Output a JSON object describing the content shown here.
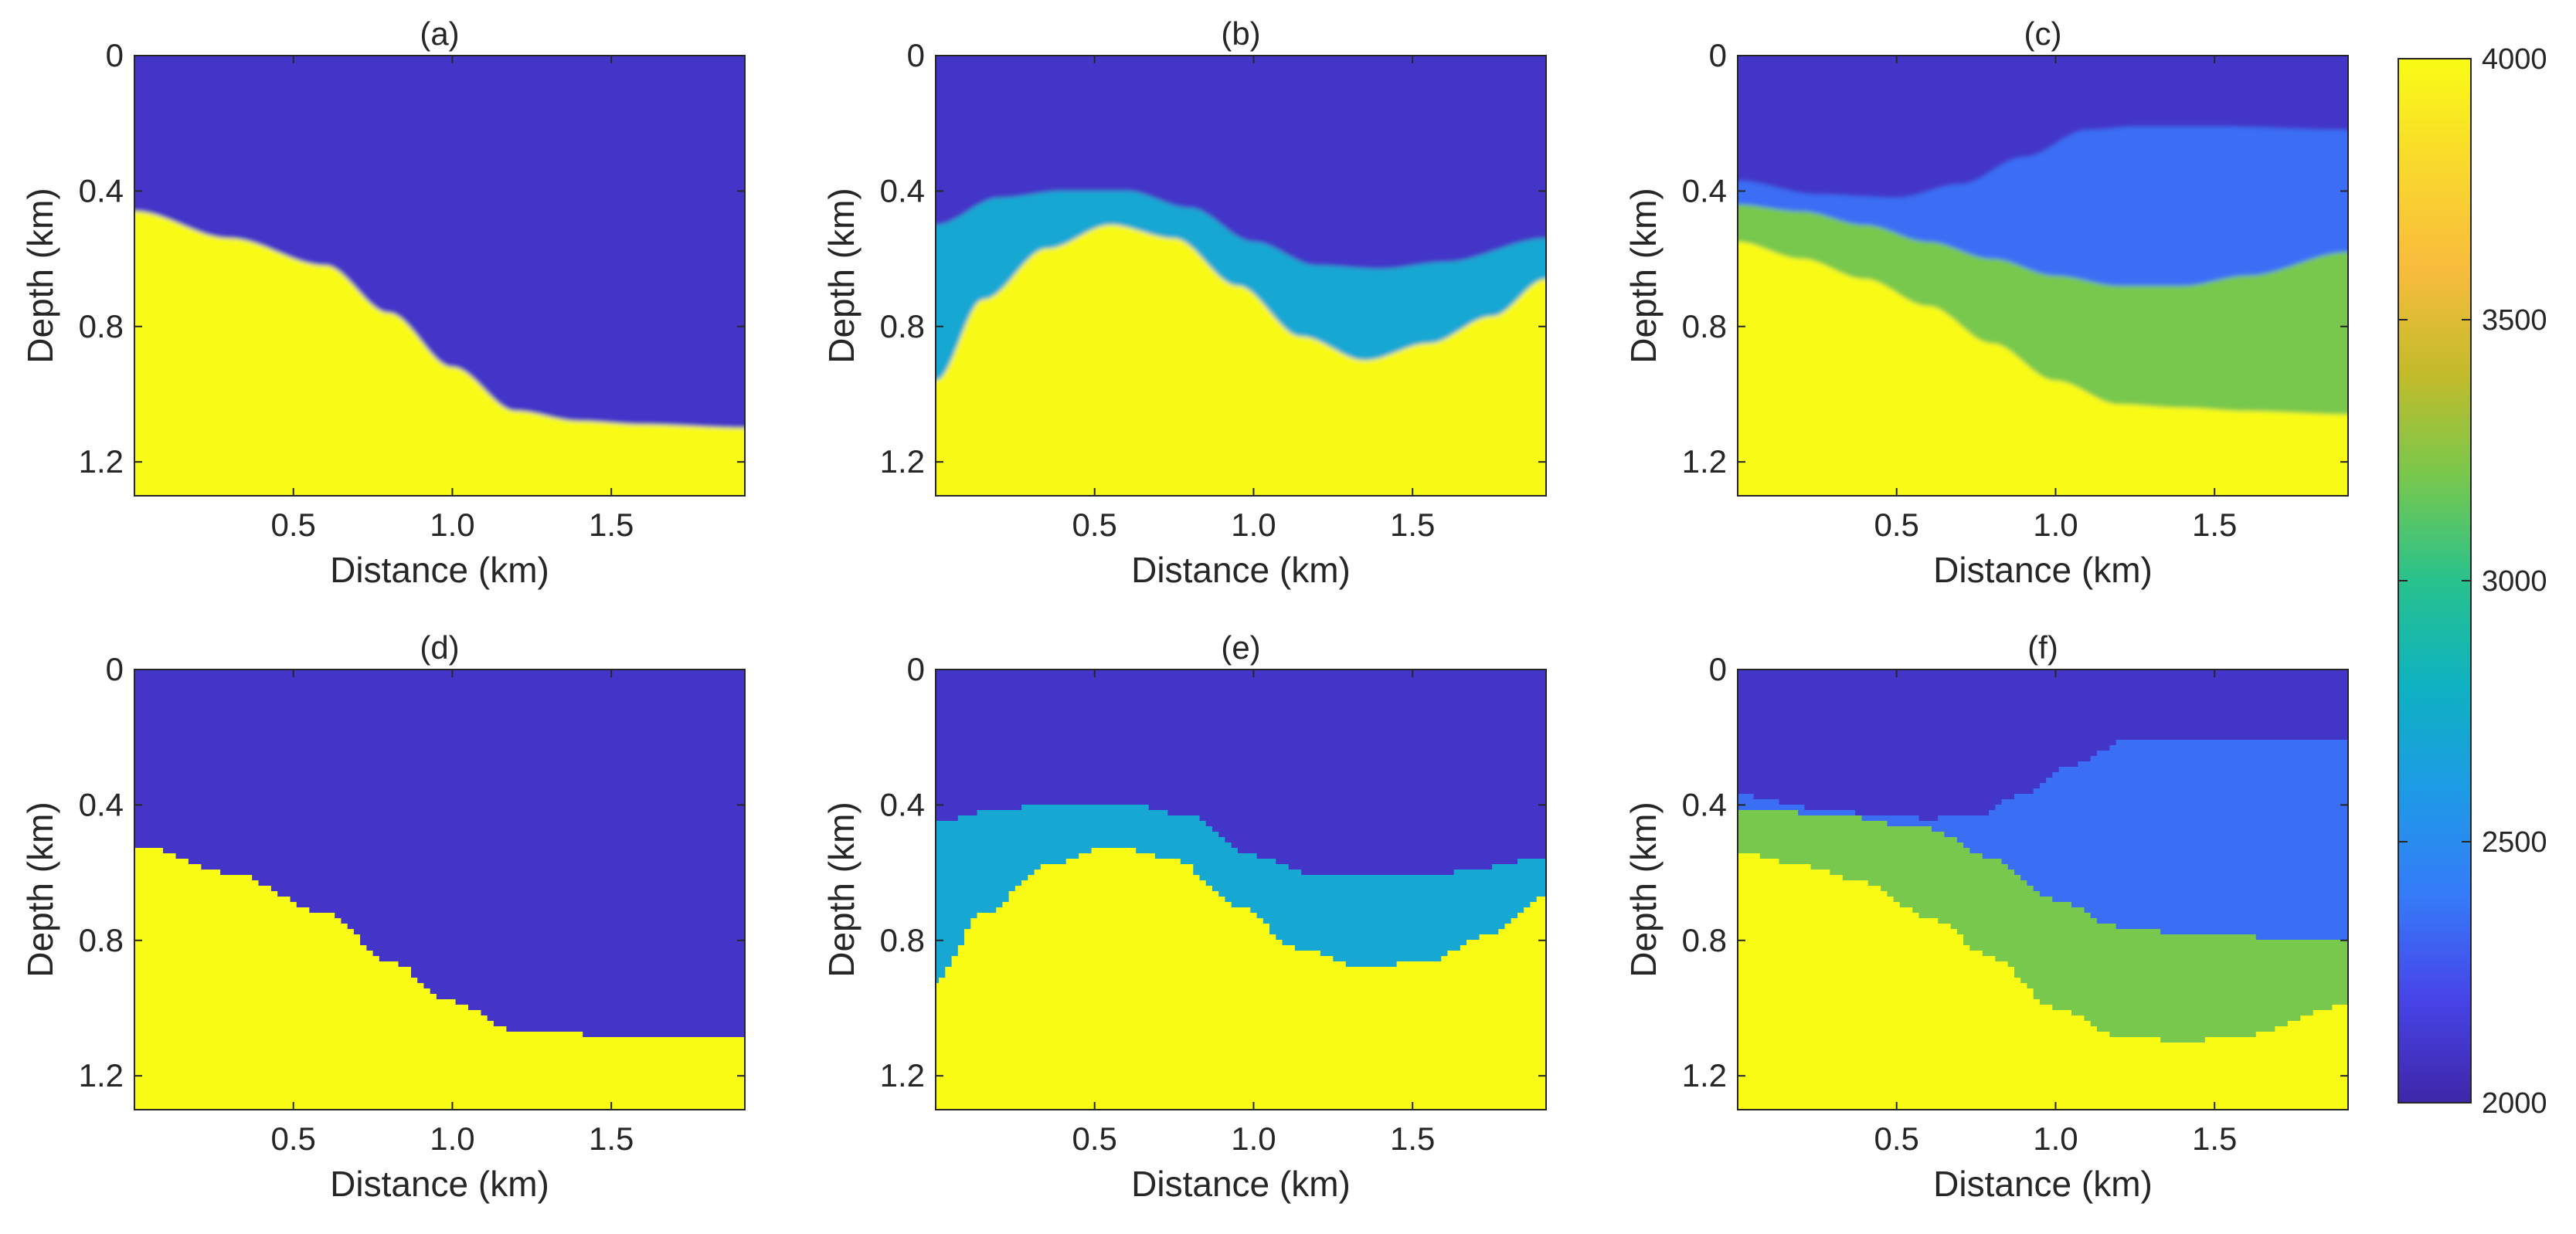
{
  "chart_data": [
    {
      "type": "heatmap",
      "title": "(a)",
      "xlabel": "Distance (km)",
      "ylabel": "Depth (km)",
      "xlim": [
        0,
        1.92
      ],
      "ylim": [
        0,
        1.3
      ],
      "xticks": [
        "0.5",
        "1.0",
        "1.5"
      ],
      "xtick_values": [
        0.5,
        1.0,
        1.5
      ],
      "yticks": [
        "0",
        "0.4",
        "0.8",
        "1.2"
      ],
      "ytick_values": [
        0,
        0.4,
        0.8,
        1.2
      ],
      "smooth": true,
      "top_velocity": 2100,
      "layers": [
        {
          "velocity": 4000,
          "top_depth": {
            "x": [
              0,
              0.3,
              0.6,
              0.8,
              1.0,
              1.2,
              1.4,
              1.6,
              1.92
            ],
            "depth": [
              0.46,
              0.54,
              0.62,
              0.76,
              0.92,
              1.05,
              1.08,
              1.09,
              1.1
            ]
          }
        }
      ]
    },
    {
      "type": "heatmap",
      "title": "(b)",
      "xlabel": "Distance (km)",
      "ylabel": "Depth (km)",
      "xlim": [
        0,
        1.92
      ],
      "ylim": [
        0,
        1.3
      ],
      "xticks": [
        "0.5",
        "1.0",
        "1.5"
      ],
      "xtick_values": [
        0.5,
        1.0,
        1.5
      ],
      "yticks": [
        "0",
        "0.4",
        "0.8",
        "1.2"
      ],
      "ytick_values": [
        0,
        0.4,
        0.8,
        1.2
      ],
      "smooth": true,
      "top_velocity": 2100,
      "layers": [
        {
          "velocity": 2700,
          "top_depth": {
            "x": [
              0,
              0.2,
              0.4,
              0.6,
              0.8,
              1.0,
              1.2,
              1.4,
              1.6,
              1.92
            ],
            "depth": [
              0.5,
              0.42,
              0.4,
              0.4,
              0.45,
              0.55,
              0.62,
              0.63,
              0.61,
              0.54
            ]
          }
        },
        {
          "velocity": 3990,
          "top_depth": {
            "x": [
              0,
              0.15,
              0.35,
              0.55,
              0.75,
              0.95,
              1.15,
              1.35,
              1.55,
              1.75,
              1.92
            ],
            "depth": [
              0.96,
              0.72,
              0.57,
              0.5,
              0.54,
              0.68,
              0.83,
              0.9,
              0.85,
              0.77,
              0.66
            ]
          }
        }
      ]
    },
    {
      "type": "heatmap",
      "title": "(c)",
      "xlabel": "Distance (km)",
      "ylabel": "Depth (km)",
      "xlim": [
        0,
        1.92
      ],
      "ylim": [
        0,
        1.3
      ],
      "xticks": [
        "0.5",
        "1.0",
        "1.5"
      ],
      "xtick_values": [
        0.5,
        1.0,
        1.5
      ],
      "yticks": [
        "0",
        "0.4",
        "0.8",
        "1.2"
      ],
      "ytick_values": [
        0,
        0.4,
        0.8,
        1.2
      ],
      "smooth": true,
      "top_velocity": 2100,
      "layers": [
        {
          "velocity": 2350,
          "top_depth": {
            "x": [
              0,
              0.25,
              0.5,
              0.7,
              0.9,
              1.1,
              1.25,
              1.5,
              1.92
            ],
            "depth": [
              0.37,
              0.41,
              0.42,
              0.38,
              0.3,
              0.22,
              0.21,
              0.21,
              0.22
            ]
          }
        },
        {
          "velocity": 3200,
          "top_depth": {
            "x": [
              0,
              0.2,
              0.4,
              0.6,
              0.8,
              1.0,
              1.2,
              1.4,
              1.6,
              1.92
            ],
            "depth": [
              0.44,
              0.46,
              0.5,
              0.55,
              0.6,
              0.65,
              0.68,
              0.68,
              0.65,
              0.58
            ]
          }
        },
        {
          "velocity": 4000,
          "top_depth": {
            "x": [
              0,
              0.2,
              0.4,
              0.6,
              0.8,
              1.0,
              1.2,
              1.4,
              1.6,
              1.92
            ],
            "depth": [
              0.55,
              0.6,
              0.66,
              0.74,
              0.85,
              0.96,
              1.03,
              1.04,
              1.05,
              1.06
            ]
          }
        }
      ]
    },
    {
      "type": "heatmap",
      "title": "(d)",
      "xlabel": "Distance (km)",
      "ylabel": "Depth (km)",
      "xlim": [
        0,
        1.92
      ],
      "ylim": [
        0,
        1.3
      ],
      "xticks": [
        "0.5",
        "1.0",
        "1.5"
      ],
      "xtick_values": [
        0.5,
        1.0,
        1.5
      ],
      "yticks": [
        "0",
        "0.4",
        "0.8",
        "1.2"
      ],
      "ytick_values": [
        0,
        0.4,
        0.8,
        1.2
      ],
      "smooth": false,
      "top_velocity": 2100,
      "layers": [
        {
          "velocity": 4000,
          "top_depth": {
            "x": [
              0,
              0.3,
              0.6,
              0.8,
              1.0,
              1.2,
              1.5,
              1.92
            ],
            "depth": [
              0.52,
              0.6,
              0.72,
              0.86,
              0.98,
              1.07,
              1.08,
              1.08
            ]
          }
        }
      ]
    },
    {
      "type": "heatmap",
      "title": "(e)",
      "xlabel": "Distance (km)",
      "ylabel": "Depth (km)",
      "xlim": [
        0,
        1.92
      ],
      "ylim": [
        0,
        1.3
      ],
      "xticks": [
        "0.5",
        "1.0",
        "1.5"
      ],
      "xtick_values": [
        0.5,
        1.0,
        1.5
      ],
      "yticks": [
        "0",
        "0.4",
        "0.8",
        "1.2"
      ],
      "ytick_values": [
        0,
        0.4,
        0.8,
        1.2
      ],
      "smooth": false,
      "top_velocity": 2100,
      "layers": [
        {
          "velocity": 2700,
          "top_depth": {
            "x": [
              0,
              0.2,
              0.4,
              0.6,
              0.8,
              1.0,
              1.2,
              1.4,
              1.6,
              1.92
            ],
            "depth": [
              0.45,
              0.41,
              0.4,
              0.4,
              0.43,
              0.55,
              0.61,
              0.61,
              0.6,
              0.56
            ]
          }
        },
        {
          "velocity": 4000,
          "top_depth": {
            "x": [
              0,
              0.15,
              0.35,
              0.55,
              0.75,
              0.95,
              1.15,
              1.35,
              1.55,
              1.75,
              1.92
            ],
            "depth": [
              0.92,
              0.72,
              0.58,
              0.52,
              0.56,
              0.7,
              0.83,
              0.88,
              0.86,
              0.78,
              0.67
            ]
          }
        }
      ]
    },
    {
      "type": "heatmap",
      "title": "(f)",
      "xlabel": "Distance (km)",
      "ylabel": "Depth (km)",
      "xlim": [
        0,
        1.92
      ],
      "ylim": [
        0,
        1.3
      ],
      "xticks": [
        "0.5",
        "1.0",
        "1.5"
      ],
      "xtick_values": [
        0.5,
        1.0,
        1.5
      ],
      "yticks": [
        "0",
        "0.4",
        "0.8",
        "1.2"
      ],
      "ytick_values": [
        0,
        0.4,
        0.8,
        1.2
      ],
      "smooth": false,
      "top_velocity": 2100,
      "layers": [
        {
          "velocity": 2350,
          "top_depth": {
            "x": [
              0,
              0.3,
              0.6,
              0.75,
              0.9,
              1.05,
              1.25,
              1.5,
              1.92
            ],
            "depth": [
              0.37,
              0.42,
              0.44,
              0.43,
              0.37,
              0.28,
              0.2,
              0.2,
              0.2
            ]
          }
        },
        {
          "velocity": 3200,
          "top_depth": {
            "x": [
              0,
              0.3,
              0.6,
              0.8,
              1.0,
              1.2,
              1.4,
              1.6,
              1.92
            ],
            "depth": [
              0.41,
              0.43,
              0.47,
              0.56,
              0.68,
              0.76,
              0.78,
              0.79,
              0.8
            ]
          }
        },
        {
          "velocity": 4000,
          "top_depth": {
            "x": [
              0,
              0.2,
              0.4,
              0.6,
              0.8,
              1.0,
              1.2,
              1.4,
              1.6,
              1.92
            ],
            "depth": [
              0.54,
              0.58,
              0.63,
              0.73,
              0.85,
              1.0,
              1.08,
              1.1,
              1.08,
              0.99
            ]
          }
        }
      ]
    }
  ],
  "colorbar": {
    "min": 2000,
    "max": 4000,
    "ticks": [
      "2000",
      "2500",
      "3000",
      "3500",
      "4000"
    ],
    "tick_values": [
      2000,
      2500,
      3000,
      3500,
      4000
    ],
    "colormap": "parula",
    "stops": [
      "#3E26A8",
      "#4744E8",
      "#357CF9",
      "#1D9BE5",
      "#0EB2C1",
      "#28C28D",
      "#78C84D",
      "#C4BB2A",
      "#F9BC3D",
      "#F9D92C",
      "#F9FB15"
    ]
  }
}
